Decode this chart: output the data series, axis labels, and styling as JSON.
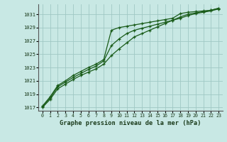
{
  "xlabel": "Graphe pression niveau de la mer (hPa)",
  "x_ticks": [
    0,
    1,
    2,
    3,
    4,
    5,
    6,
    7,
    8,
    9,
    10,
    11,
    12,
    13,
    14,
    15,
    16,
    17,
    18,
    19,
    20,
    21,
    22,
    23
  ],
  "ylim": [
    1016.5,
    1032.5
  ],
  "xlim": [
    -0.5,
    23.5
  ],
  "y_ticks": [
    1017,
    1019,
    1021,
    1023,
    1025,
    1027,
    1029,
    1031
  ],
  "bg_color": "#c8e8e4",
  "grid_color": "#a0c8c4",
  "line_color": "#1a5c1a",
  "series1": [
    1017.2,
    1018.6,
    1020.3,
    1021.0,
    1021.8,
    1022.4,
    1023.0,
    1023.5,
    1024.2,
    1028.6,
    1029.0,
    1029.2,
    1029.4,
    1029.6,
    1029.8,
    1030.0,
    1030.2,
    1030.4,
    1031.1,
    1031.3,
    1031.4,
    1031.5,
    1031.6,
    1031.9
  ],
  "series2": [
    1017.1,
    1018.4,
    1020.1,
    1020.8,
    1021.5,
    1022.1,
    1022.7,
    1023.2,
    1024.0,
    1026.3,
    1027.3,
    1028.1,
    1028.6,
    1028.9,
    1029.2,
    1029.5,
    1029.8,
    1030.1,
    1030.4,
    1030.8,
    1031.1,
    1031.3,
    1031.5,
    1031.8
  ],
  "series3": [
    1017.0,
    1018.2,
    1019.8,
    1020.5,
    1021.2,
    1021.8,
    1022.3,
    1022.8,
    1023.5,
    1024.8,
    1025.8,
    1026.7,
    1027.6,
    1028.1,
    1028.6,
    1029.1,
    1029.6,
    1030.1,
    1030.6,
    1031.0,
    1031.2,
    1031.4,
    1031.6,
    1031.9
  ]
}
